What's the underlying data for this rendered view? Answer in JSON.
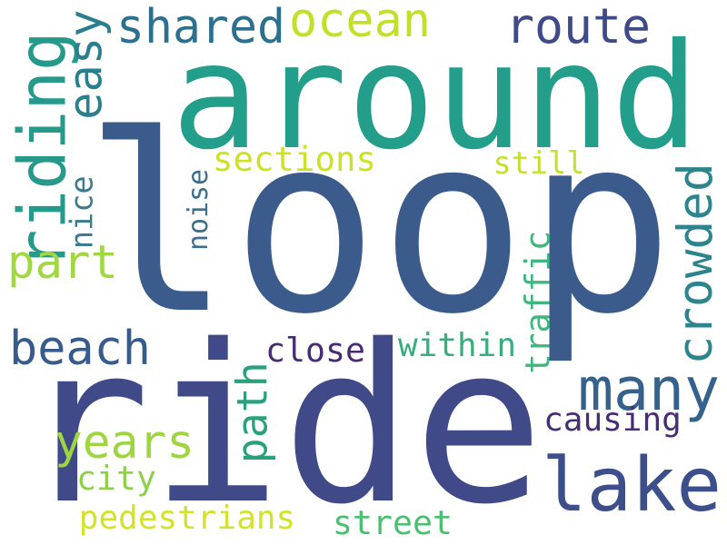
{
  "words": [
    {
      "text": "loop",
      "color": "#3b5b8c"
    },
    {
      "text": "ride",
      "color": "#404a89"
    },
    {
      "text": "around",
      "color": "#229e8a"
    },
    {
      "text": "riding",
      "color": "#25998a"
    },
    {
      "text": "lake",
      "color": "#3d4f8a"
    },
    {
      "text": "many",
      "color": "#34628d"
    },
    {
      "text": "ocean",
      "color": "#c3df2a"
    },
    {
      "text": "route",
      "color": "#3f4b89"
    },
    {
      "text": "shared",
      "color": "#2c6f8e"
    },
    {
      "text": "easy",
      "color": "#2a7f8e"
    },
    {
      "text": "beach",
      "color": "#375c8c"
    },
    {
      "text": "crowded",
      "color": "#2d848c"
    },
    {
      "text": "part",
      "color": "#a2d744"
    },
    {
      "text": "years",
      "color": "#9fd63f"
    },
    {
      "text": "path",
      "color": "#2aa07f"
    },
    {
      "text": "sections",
      "color": "#cde225"
    },
    {
      "text": "still",
      "color": "#c5df30"
    },
    {
      "text": "nice",
      "color": "#3c7b8e"
    },
    {
      "text": "noise",
      "color": "#3e6e8e"
    },
    {
      "text": "traffic",
      "color": "#3fb77f"
    },
    {
      "text": "within",
      "color": "#38ad7d"
    },
    {
      "text": "close",
      "color": "#472c74"
    },
    {
      "text": "causing",
      "color": "#472d71"
    },
    {
      "text": "city",
      "color": "#8dd04b"
    },
    {
      "text": "pedestrians",
      "color": "#d3e22a"
    },
    {
      "text": "street",
      "color": "#4bbf70"
    }
  ]
}
